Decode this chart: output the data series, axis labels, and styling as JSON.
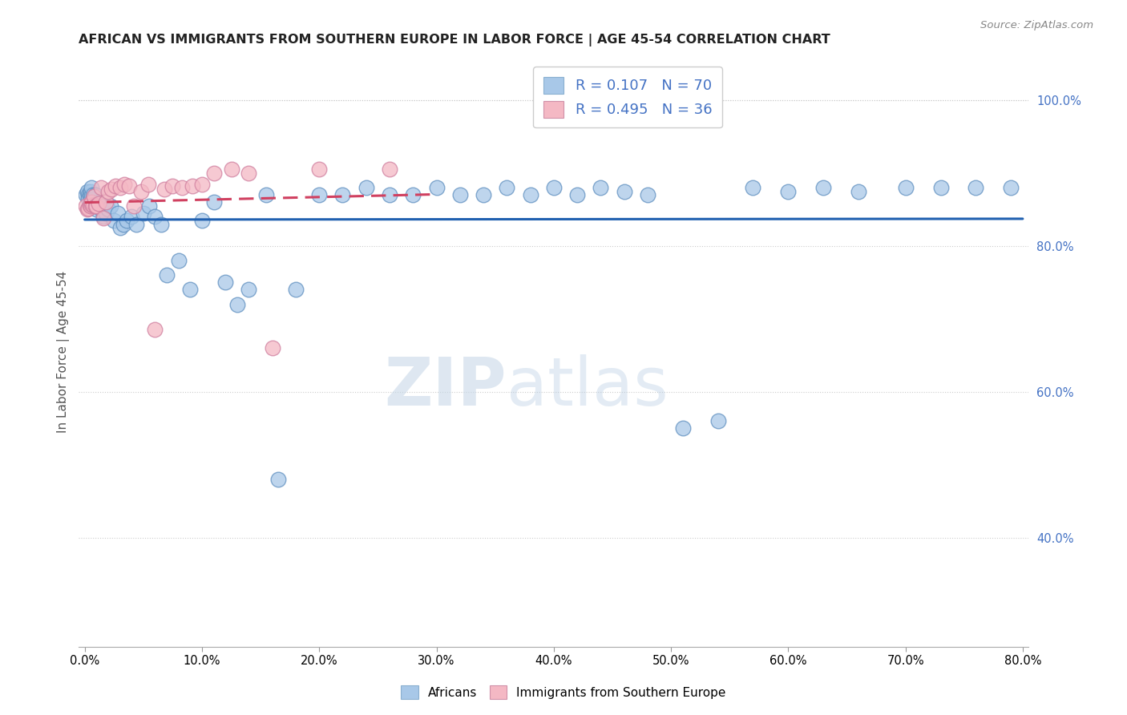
{
  "title": "AFRICAN VS IMMIGRANTS FROM SOUTHERN EUROPE IN LABOR FORCE | AGE 45-54 CORRELATION CHART",
  "source": "Source: ZipAtlas.com",
  "ylabel": "In Labor Force | Age 45-54",
  "xlim": [
    -0.005,
    0.805
  ],
  "ylim": [
    0.25,
    1.06
  ],
  "xticks": [
    0.0,
    0.1,
    0.2,
    0.3,
    0.4,
    0.5,
    0.6,
    0.7,
    0.8
  ],
  "yticks_right": [
    1.0,
    0.8,
    0.6,
    0.4
  ],
  "legend_r1": "0.107",
  "legend_n1": "70",
  "legend_r2": "0.495",
  "legend_n2": "36",
  "color_blue": "#a8c8e8",
  "color_pink": "#f4b8c4",
  "color_line_blue": "#2060b0",
  "color_line_pink": "#d04060",
  "tick_color": "#4472c4",
  "watermark_zip": "ZIP",
  "watermark_atlas": "atlas",
  "africans_x": [
    0.001,
    0.002,
    0.003,
    0.003,
    0.004,
    0.005,
    0.005,
    0.006,
    0.006,
    0.007,
    0.007,
    0.008,
    0.009,
    0.01,
    0.011,
    0.012,
    0.013,
    0.014,
    0.015,
    0.016,
    0.018,
    0.02,
    0.022,
    0.025,
    0.028,
    0.03,
    0.033,
    0.036,
    0.04,
    0.044,
    0.05,
    0.055,
    0.06,
    0.065,
    0.07,
    0.08,
    0.09,
    0.1,
    0.11,
    0.12,
    0.13,
    0.14,
    0.155,
    0.165,
    0.18,
    0.2,
    0.22,
    0.24,
    0.26,
    0.28,
    0.3,
    0.32,
    0.34,
    0.36,
    0.38,
    0.4,
    0.42,
    0.44,
    0.46,
    0.48,
    0.51,
    0.54,
    0.57,
    0.6,
    0.63,
    0.66,
    0.7,
    0.73,
    0.76,
    0.79
  ],
  "africans_y": [
    0.87,
    0.875,
    0.87,
    0.865,
    0.87,
    0.875,
    0.865,
    0.87,
    0.88,
    0.87,
    0.86,
    0.865,
    0.87,
    0.85,
    0.855,
    0.86,
    0.855,
    0.85,
    0.855,
    0.84,
    0.845,
    0.85,
    0.855,
    0.835,
    0.845,
    0.825,
    0.83,
    0.835,
    0.84,
    0.83,
    0.845,
    0.855,
    0.84,
    0.83,
    0.76,
    0.78,
    0.74,
    0.835,
    0.86,
    0.75,
    0.72,
    0.74,
    0.87,
    0.48,
    0.74,
    0.87,
    0.87,
    0.88,
    0.87,
    0.87,
    0.88,
    0.87,
    0.87,
    0.88,
    0.87,
    0.88,
    0.87,
    0.88,
    0.875,
    0.87,
    0.55,
    0.56,
    0.88,
    0.875,
    0.88,
    0.875,
    0.88,
    0.88,
    0.88,
    0.88
  ],
  "southern_eu_x": [
    0.001,
    0.002,
    0.003,
    0.004,
    0.005,
    0.006,
    0.006,
    0.007,
    0.008,
    0.009,
    0.01,
    0.012,
    0.014,
    0.016,
    0.018,
    0.02,
    0.023,
    0.026,
    0.03,
    0.034,
    0.038,
    0.042,
    0.048,
    0.054,
    0.06,
    0.068,
    0.075,
    0.083,
    0.092,
    0.1,
    0.11,
    0.125,
    0.14,
    0.16,
    0.2,
    0.26
  ],
  "southern_eu_y": [
    0.855,
    0.85,
    0.852,
    0.856,
    0.855,
    0.857,
    0.86,
    0.856,
    0.868,
    0.855,
    0.855,
    0.858,
    0.88,
    0.838,
    0.86,
    0.875,
    0.878,
    0.882,
    0.88,
    0.885,
    0.882,
    0.855,
    0.875,
    0.885,
    0.685,
    0.878,
    0.882,
    0.88,
    0.882,
    0.885,
    0.9,
    0.905,
    0.9,
    0.66,
    0.905,
    0.905
  ]
}
